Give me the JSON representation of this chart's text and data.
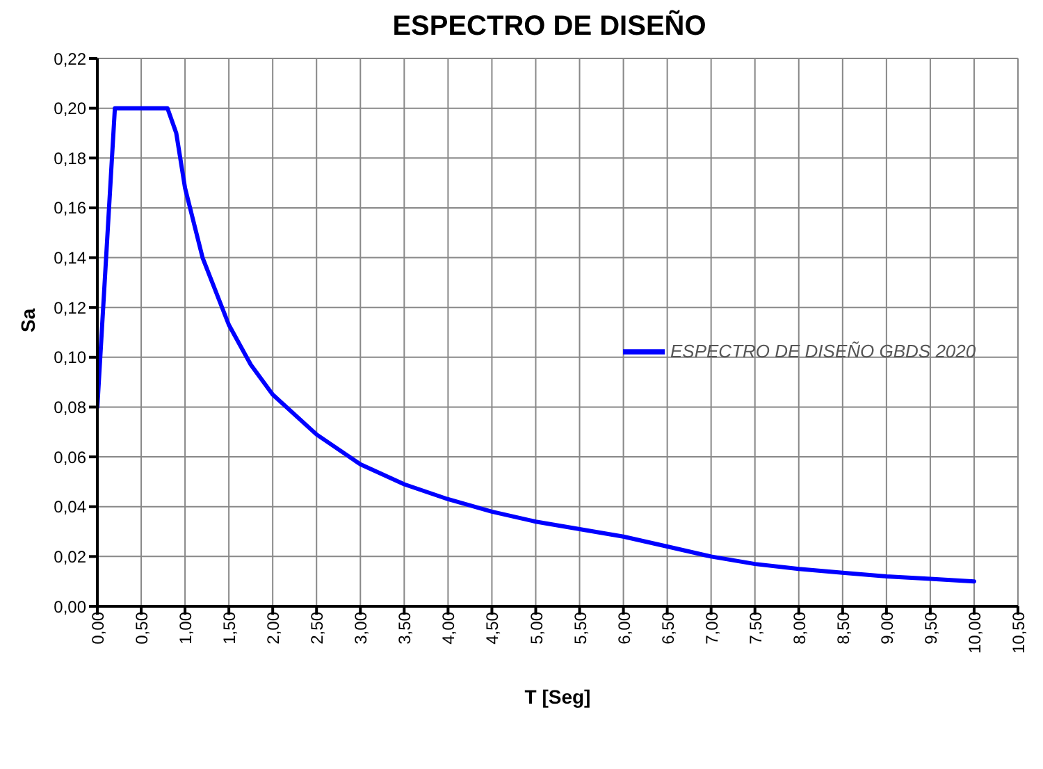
{
  "chart_data": {
    "type": "line",
    "title": "ESPECTRO DE DISEÑO",
    "xlabel": "T [Seg]",
    "ylabel": "Sa",
    "x": [
      0,
      0.2,
      0.8,
      0.9,
      1.0,
      1.2,
      1.5,
      1.75,
      2.0,
      2.5,
      3.0,
      3.5,
      4.0,
      4.5,
      5.0,
      5.5,
      6.0,
      6.5,
      7.0,
      7.5,
      8.0,
      8.5,
      9.0,
      9.5,
      10.0
    ],
    "series": [
      {
        "name": "ESPECTRO DE DISEÑO GBDS 2020",
        "color": "#0000ff",
        "values": [
          0.08,
          0.2,
          0.2,
          0.19,
          0.168,
          0.14,
          0.113,
          0.097,
          0.085,
          0.069,
          0.057,
          0.049,
          0.043,
          0.038,
          0.034,
          0.031,
          0.028,
          0.024,
          0.02,
          0.017,
          0.015,
          0.0135,
          0.012,
          0.011,
          0.01
        ]
      }
    ],
    "xlim": [
      0,
      10.5
    ],
    "xticks": [
      {
        "value": 0,
        "label": "0,00"
      },
      {
        "value": 0.5,
        "label": "0,50"
      },
      {
        "value": 1,
        "label": "1,00"
      },
      {
        "value": 1.5,
        "label": "1,50"
      },
      {
        "value": 2,
        "label": "2,00"
      },
      {
        "value": 2.5,
        "label": "2,50"
      },
      {
        "value": 3,
        "label": "3,00"
      },
      {
        "value": 3.5,
        "label": "3,50"
      },
      {
        "value": 4,
        "label": "4,00"
      },
      {
        "value": 4.5,
        "label": "4,50"
      },
      {
        "value": 5,
        "label": "5,00"
      },
      {
        "value": 5.5,
        "label": "5,50"
      },
      {
        "value": 6,
        "label": "6,00"
      },
      {
        "value": 6.5,
        "label": "6,50"
      },
      {
        "value": 7,
        "label": "7,00"
      },
      {
        "value": 7.5,
        "label": "7,50"
      },
      {
        "value": 8,
        "label": "8,00"
      },
      {
        "value": 8.5,
        "label": "8,50"
      },
      {
        "value": 9,
        "label": "9,00"
      },
      {
        "value": 9.5,
        "label": "9,50"
      },
      {
        "value": 10,
        "label": "10,00"
      },
      {
        "value": 10.5,
        "label": "10,50"
      }
    ],
    "ylim": [
      0,
      0.22
    ],
    "yticks": [
      {
        "value": 0,
        "label": "0,00"
      },
      {
        "value": 0.02,
        "label": "0,02"
      },
      {
        "value": 0.04,
        "label": "0,04"
      },
      {
        "value": 0.06,
        "label": "0,06"
      },
      {
        "value": 0.08,
        "label": "0,08"
      },
      {
        "value": 0.1,
        "label": "0,10"
      },
      {
        "value": 0.12,
        "label": "0,12"
      },
      {
        "value": 0.14,
        "label": "0,14"
      },
      {
        "value": 0.16,
        "label": "0,16"
      },
      {
        "value": 0.18,
        "label": "0,18"
      },
      {
        "value": 0.2,
        "label": "0,20"
      },
      {
        "value": 0.22,
        "label": "0,22"
      }
    ],
    "grid": true,
    "legend": "right",
    "marker": "none",
    "line_style": "solid"
  }
}
